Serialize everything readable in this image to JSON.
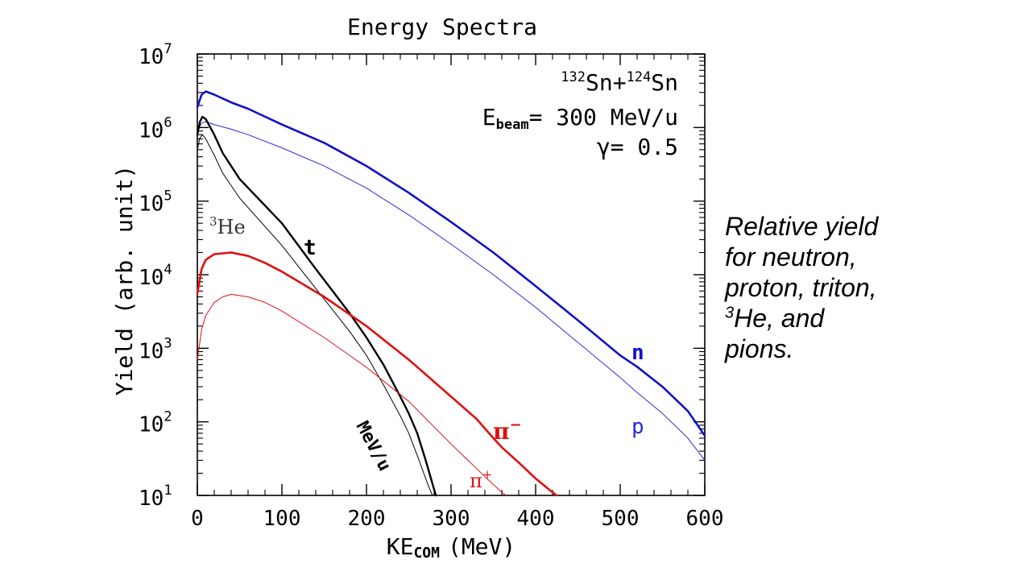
{
  "side_note": {
    "line1": "Relative yield",
    "line2": "for neutron,",
    "line3": "proton, triton,",
    "line4_sup": "3",
    "line4": "He, and",
    "line5": "pions."
  },
  "info": {
    "reaction_a_mass": "132",
    "reaction_a": "Sn+",
    "reaction_b_mass": "124",
    "reaction_b": "Sn",
    "ebeam_main": "E",
    "ebeam_sub": "beam",
    "ebeam_value": "= 300 MeV/u",
    "gamma": "γ= 0.5"
  },
  "chart_data": {
    "type": "line",
    "title": "Energy Spectra",
    "xlabel_main": "KE",
    "xlabel_sub": "COM",
    "xlabel_unit": "(MeV)",
    "ylabel": "Yield (arb. unit)",
    "xlim": [
      0,
      600
    ],
    "ylim": [
      10,
      10000000
    ],
    "yscale": "log",
    "x_ticks": [
      0,
      100,
      200,
      300,
      400,
      500,
      600
    ],
    "x_tick_labels": [
      "0",
      "100",
      "200",
      "300",
      "400",
      "500",
      "600"
    ],
    "y_ticks": [
      10,
      100,
      1000,
      10000,
      100000,
      1000000,
      10000000
    ],
    "y_tick_exponents": [
      "1",
      "2",
      "3",
      "4",
      "5",
      "6",
      "7"
    ],
    "y_tick_base": "10",
    "grid": false,
    "series": [
      {
        "name": "n",
        "color": "#1010cc",
        "width": 2.6,
        "points": [
          [
            0,
            1900000
          ],
          [
            5,
            2800000
          ],
          [
            10,
            3100000
          ],
          [
            20,
            2800000
          ],
          [
            40,
            2200000
          ],
          [
            60,
            1800000
          ],
          [
            100,
            1100000
          ],
          [
            150,
            620000
          ],
          [
            200,
            300000
          ],
          [
            250,
            130000
          ],
          [
            300,
            52000
          ],
          [
            350,
            20000
          ],
          [
            400,
            7000
          ],
          [
            450,
            2400
          ],
          [
            500,
            800
          ],
          [
            520,
            560
          ],
          [
            550,
            300
          ],
          [
            580,
            140
          ],
          [
            600,
            65
          ]
        ]
      },
      {
        "name": "p",
        "color": "#2a2ad8",
        "width": 1.0,
        "points": [
          [
            0,
            900000
          ],
          [
            5,
            1150000
          ],
          [
            10,
            1200000
          ],
          [
            20,
            1100000
          ],
          [
            40,
            950000
          ],
          [
            60,
            800000
          ],
          [
            100,
            530000
          ],
          [
            150,
            300000
          ],
          [
            200,
            150000
          ],
          [
            250,
            65000
          ],
          [
            300,
            26000
          ],
          [
            350,
            10000
          ],
          [
            400,
            3600
          ],
          [
            450,
            1200
          ],
          [
            500,
            400
          ],
          [
            520,
            250
          ],
          [
            550,
            130
          ],
          [
            580,
            60
          ],
          [
            600,
            30
          ]
        ]
      },
      {
        "name": "t",
        "color": "#000000",
        "width": 2.4,
        "points": [
          [
            0,
            800000
          ],
          [
            3,
            1200000
          ],
          [
            6,
            1400000
          ],
          [
            10,
            1300000
          ],
          [
            20,
            800000
          ],
          [
            30,
            450000
          ],
          [
            50,
            200000
          ],
          [
            100,
            50000
          ],
          [
            140,
            12000
          ],
          [
            180,
            3000
          ],
          [
            200,
            1400
          ],
          [
            220,
            600
          ],
          [
            240,
            220
          ],
          [
            250,
            130
          ],
          [
            260,
            70
          ],
          [
            270,
            30
          ],
          [
            280,
            12
          ],
          [
            282,
            10
          ]
        ]
      },
      {
        "name": "³He",
        "color": "#000000",
        "width": 1.0,
        "points": [
          [
            0,
            500000
          ],
          [
            3,
            720000
          ],
          [
            6,
            800000
          ],
          [
            10,
            700000
          ],
          [
            20,
            420000
          ],
          [
            30,
            240000
          ],
          [
            50,
            110000
          ],
          [
            100,
            25000
          ],
          [
            140,
            6500
          ],
          [
            180,
            1700
          ],
          [
            200,
            800
          ],
          [
            220,
            320
          ],
          [
            240,
            120
          ],
          [
            250,
            70
          ],
          [
            260,
            35
          ],
          [
            270,
            17
          ],
          [
            275,
            12
          ],
          [
            278,
            10
          ]
        ]
      },
      {
        "name": "π⁻",
        "color": "#e01010",
        "width": 2.6,
        "points": [
          [
            0,
            5500
          ],
          [
            5,
            12000
          ],
          [
            10,
            16000
          ],
          [
            20,
            19000
          ],
          [
            40,
            20000
          ],
          [
            60,
            18000
          ],
          [
            80,
            14500
          ],
          [
            100,
            11000
          ],
          [
            150,
            5000
          ],
          [
            200,
            2000
          ],
          [
            250,
            700
          ],
          [
            300,
            220
          ],
          [
            330,
            110
          ],
          [
            350,
            60
          ],
          [
            360,
            45
          ],
          [
            380,
            28
          ],
          [
            400,
            17
          ],
          [
            420,
            11
          ],
          [
            425,
            10
          ]
        ]
      },
      {
        "name": "π⁺",
        "color": "#e01010",
        "width": 1.0,
        "points": [
          [
            0,
            700
          ],
          [
            5,
            1800
          ],
          [
            10,
            2800
          ],
          [
            20,
            4200
          ],
          [
            30,
            5000
          ],
          [
            40,
            5400
          ],
          [
            60,
            5000
          ],
          [
            80,
            4200
          ],
          [
            100,
            3200
          ],
          [
            150,
            1400
          ],
          [
            200,
            550
          ],
          [
            250,
            190
          ],
          [
            300,
            50
          ],
          [
            320,
            30
          ],
          [
            340,
            18
          ],
          [
            360,
            11
          ],
          [
            365,
            10
          ]
        ]
      }
    ],
    "annotations": {
      "n": "n",
      "p": "p",
      "t": "t",
      "he_sup": "3",
      "he": "He",
      "pi_minus": "π",
      "pi_minus_sup": "−",
      "pi_plus": "π",
      "pi_plus_sup": "+",
      "mevu": "MeV/u"
    }
  }
}
